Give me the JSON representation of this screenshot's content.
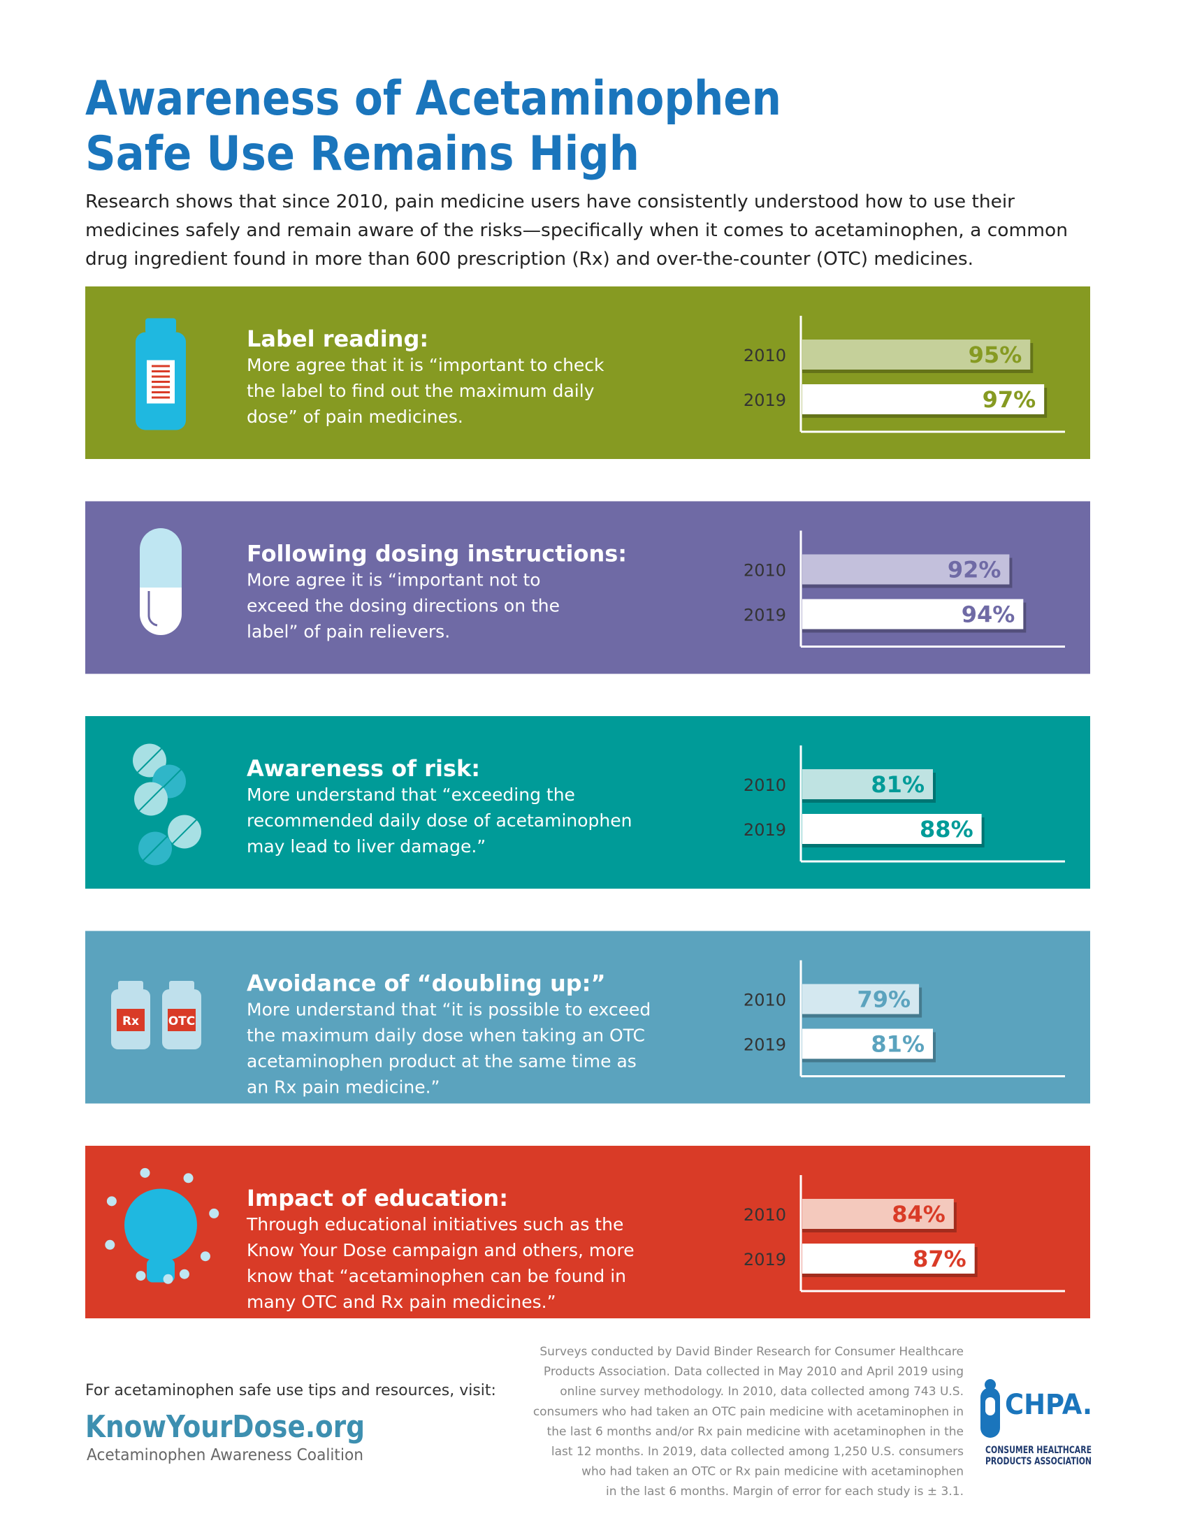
{
  "header": {
    "title": [
      "Awareness of Acetaminophen",
      "Safe Use Remains High"
    ],
    "intro": [
      "Research shows that since 2010, pain medicine users have consistently understood how to use their",
      "medicines safely and remain aware of the risks—specifically when it comes to acetaminophen, a common",
      "drug ingredient found in more than 600 prescription (Rx) and over-the-counter (OTC) medicines."
    ]
  },
  "chart_data": [
    {
      "type": "bar",
      "orientation": "horizontal",
      "title": "Label reading:",
      "subtitle": [
        "More agree that it is “important to check",
        "the label to find out the maximum daily",
        "dose” of pain medicines."
      ],
      "categories": [
        "2010",
        "2019"
      ],
      "values": [
        95,
        97
      ],
      "value_labels": [
        "95%",
        "97%"
      ],
      "color": "#869a22",
      "bar_colors": [
        "#c5d09a",
        "#ffffff"
      ],
      "xlim": [
        62,
        100
      ]
    },
    {
      "type": "bar",
      "orientation": "horizontal",
      "title": "Following dosing instructions:",
      "subtitle": [
        "More agree it is “important not to",
        "exceed the dosing directions on the",
        "label” of pain relievers."
      ],
      "categories": [
        "2010",
        "2019"
      ],
      "values": [
        92,
        94
      ],
      "value_labels": [
        "92%",
        "94%"
      ],
      "color": "#6f6aa5",
      "bar_colors": [
        "#c3c0dc",
        "#ffffff"
      ],
      "xlim": [
        62,
        100
      ]
    },
    {
      "type": "bar",
      "orientation": "horizontal",
      "title": "Awareness of risk:",
      "subtitle": [
        "More understand that “exceeding the",
        "recommended daily dose of acetaminophen",
        "may lead to liver damage.”"
      ],
      "categories": [
        "2010",
        "2019"
      ],
      "values": [
        81,
        88
      ],
      "value_labels": [
        "81%",
        "88%"
      ],
      "color": "#009b98",
      "bar_colors": [
        "#bfe3e2",
        "#ffffff"
      ],
      "xlim": [
        62,
        100
      ]
    },
    {
      "type": "bar",
      "orientation": "horizontal",
      "title": "Avoidance of “doubling up:”",
      "subtitle": [
        "More understand that “it is possible to exceed",
        "the maximum daily dose when taking an OTC",
        "acetaminophen product at the same time as",
        "an Rx pain medicine.”"
      ],
      "categories": [
        "2010",
        "2019"
      ],
      "values": [
        79,
        81
      ],
      "value_labels": [
        "79%",
        "81%"
      ],
      "color": "#5ba3be",
      "bar_colors": [
        "#d4e8f0",
        "#ffffff"
      ],
      "xlim": [
        62,
        100
      ]
    },
    {
      "type": "bar",
      "orientation": "horizontal",
      "title": "Impact of education:",
      "subtitle": [
        "Through educational initiatives such as the",
        "Know Your Dose campaign and others, more",
        "know that “acetaminophen can be found in",
        "many OTC and Rx pain medicines.”"
      ],
      "categories": [
        "2010",
        "2019"
      ],
      "values": [
        84,
        87
      ],
      "value_labels": [
        "84%",
        "87%"
      ],
      "color": "#d93b27",
      "bar_colors": [
        "#f4c9bd",
        "#ffffff"
      ],
      "xlim": [
        62,
        100
      ]
    }
  ],
  "icon_labels": [
    "Rx",
    "OTC"
  ],
  "footer": {
    "visit": "For acetaminophen safe use tips and resources, visit:",
    "site": "KnowYourDose.org",
    "coalition": "Acetaminophen Awareness Coalition",
    "note": [
      "Surveys conducted by David Binder Research for Consumer Healthcare",
      "Products Association. Data collected in May 2010 and April 2019 using",
      "online survey methodology. In 2010, data collected among 743 U.S.",
      "consumers who had taken an OTC pain medicine with acetaminophen in",
      "the last 6 months and/or Rx pain medicine with acetaminophen in the",
      "last 12 months. In 2019, data collected among 1,250 U.S. consumers",
      "who had taken an OTC or Rx pain medicine with acetaminophen",
      "in the last 6 months. Margin of error for each study is ± 3.1."
    ],
    "logo": "CHPA.",
    "logo_sub": [
      "CONSUMER HEALTHCARE",
      "PRODUCTS ASSOCIATION"
    ]
  }
}
